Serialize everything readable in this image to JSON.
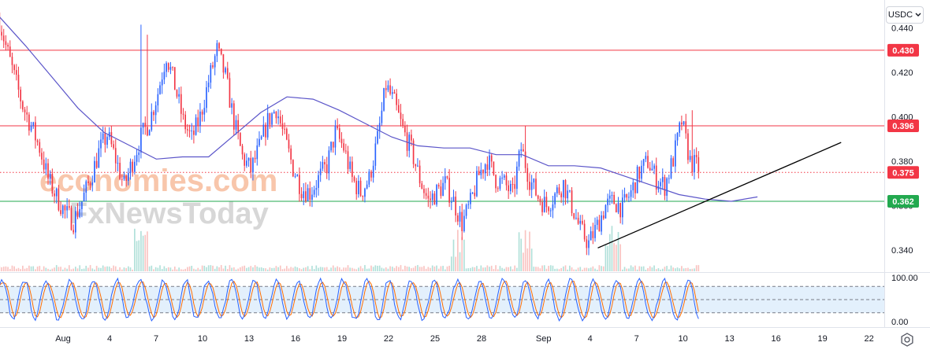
{
  "toolbar": {
    "currency": "USDC",
    "currency_icon": "chevron-down-icon",
    "settings_icon": "settings-icon"
  },
  "watermark": {
    "line1": "economies.com",
    "line2": "FxNewsToday"
  },
  "chart_data": {
    "type": "candlestick",
    "colors": {
      "up": "#2962ff",
      "down": "#f23645",
      "ma": "#5b55c9",
      "stoch_k": "#2962ff",
      "stoch_d": "#ff6d00",
      "resistance": "#f23645",
      "support": "#22a94f",
      "current": "#f23645",
      "trendline": "#000000"
    },
    "price_axis": {
      "range": [
        0.3305,
        0.4505
      ],
      "ticks": [
        "0.440",
        "0.420",
        "0.400",
        "0.380",
        "0.360",
        "0.340"
      ]
    },
    "time_axis": {
      "labels": [
        "Aug",
        "4",
        "7",
        "10",
        "13",
        "16",
        "19",
        "22",
        "25",
        "28",
        "Sep",
        "4",
        "7",
        "10",
        "13",
        "16",
        "19",
        "22"
      ]
    },
    "levels": [
      {
        "value": 0.43,
        "label": "0.430",
        "kind": "resistance"
      },
      {
        "value": 0.396,
        "label": "0.396",
        "kind": "resistance"
      },
      {
        "value": 0.375,
        "label": "0.375",
        "kind": "current"
      },
      {
        "value": 0.362,
        "label": "0.362",
        "kind": "support"
      }
    ],
    "price_path": [
      0.447,
      0.432,
      0.418,
      0.405,
      0.396,
      0.386,
      0.372,
      0.364,
      0.357,
      0.353,
      0.362,
      0.372,
      0.384,
      0.392,
      0.381,
      0.369,
      0.38,
      0.391,
      0.398,
      0.411,
      0.428,
      0.414,
      0.398,
      0.39,
      0.4,
      0.416,
      0.43,
      0.418,
      0.398,
      0.382,
      0.376,
      0.386,
      0.398,
      0.404,
      0.39,
      0.377,
      0.368,
      0.366,
      0.372,
      0.378,
      0.393,
      0.386,
      0.372,
      0.366,
      0.372,
      0.39,
      0.414,
      0.406,
      0.394,
      0.385,
      0.372,
      0.362,
      0.366,
      0.37,
      0.362,
      0.352,
      0.361,
      0.374,
      0.381,
      0.372,
      0.37,
      0.365,
      0.386,
      0.372,
      0.364,
      0.36,
      0.365,
      0.37,
      0.36,
      0.349,
      0.343,
      0.351,
      0.36,
      0.362,
      0.359,
      0.366,
      0.375,
      0.38,
      0.372,
      0.369,
      0.381,
      0.398,
      0.38,
      0.377
    ],
    "ma_values": [
      0.445,
      0.432,
      0.418,
      0.404,
      0.393,
      0.387,
      0.381,
      0.382,
      0.382,
      0.392,
      0.402,
      0.409,
      0.408,
      0.403,
      0.397,
      0.391,
      0.387,
      0.386,
      0.386,
      0.383,
      0.383,
      0.378,
      0.378,
      0.377,
      0.373,
      0.369,
      0.365,
      0.363,
      0.362,
      0.364
    ],
    "volume_spike_days": [
      5,
      25.5,
      29.8,
      35.5
    ],
    "stochastic": {
      "range": [
        0,
        100
      ],
      "ticks": [
        "100.00",
        "0.00"
      ],
      "bands": [
        80,
        20
      ]
    }
  }
}
